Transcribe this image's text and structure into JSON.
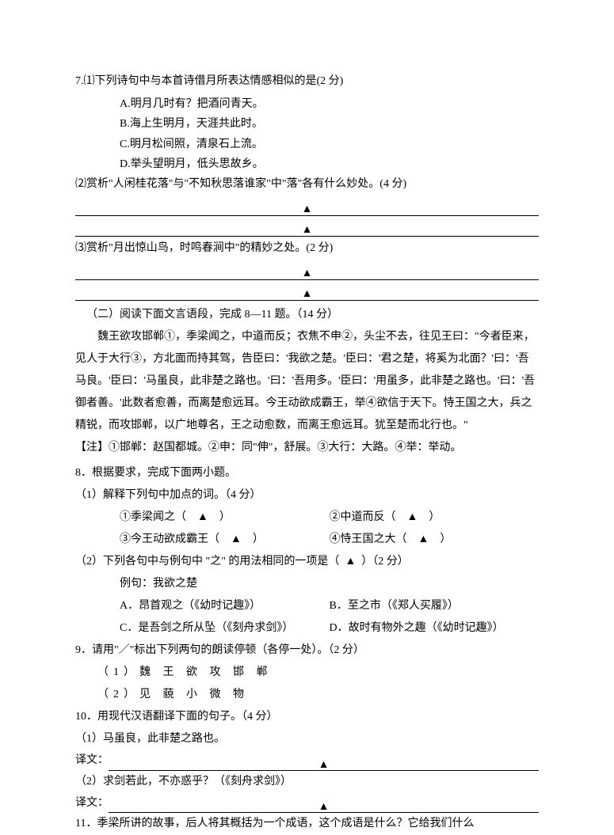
{
  "q7": {
    "stem": "7.⑴下列诗句中与本首诗借月所表达情感相似的是(2 分)",
    "opts": {
      "a": "A.明月几时有？把酒问青天。",
      "b": "B.海上生明月，天涯共此时。",
      "c": "C.明月松间照，清泉石上流。",
      "d": "D.举头望明月，低头思故乡。"
    },
    "p2": "⑵赏析\"人闲桂花落\"与\"不知秋思落谁家\"中\"落\"各有什么妙处。(4 分)",
    "p3": "⑶赏析\"月出惊山鸟，时鸣春涧中\"的精妙之处。(2 分)"
  },
  "section2": {
    "title": "（二）阅读下面文言语段，完成 8—11 题。（14 分）",
    "passage": "魏王欲攻邯郸①，季梁闻之，中道而反；衣焦不申②，头尘不去，往见王曰：\"今者臣来，见人于大行③，方北面而持其驾，告臣曰：'我欲之楚。'臣曰：'君之楚，将奚为北面？'曰：'吾马良。'臣曰：'马虽良，此非楚之路也。'曰：'吾用多。'臣曰：'用虽多，此非楚之路也。'曰：'吾御者善。'此数者愈善，而离楚愈远耳。今王动欲成霸王，举④欲信于天下。恃王国之大，兵之精锐，而攻邯郸，以广地尊名，王之动愈数，而离王愈远耳。犹至楚而北行也。\"",
    "note": "【注】①邯郸：赵国都城。②申：同\"伸\"，舒展。③大行：大路。④举：举动。"
  },
  "q8": {
    "stem": "8．根据要求，完成下面两小题。",
    "p1": "（1）解释下列句中加点的词。（4 分）",
    "b1": "①季梁闻之（",
    "b1b": "）",
    "b2": "②中道而反（",
    "b2b": "）",
    "b3": "③今王动欲成霸王（",
    "b3b": "）",
    "b4": "④恃王国之大（",
    "b4b": "）",
    "p2": "（2）下列各句中与例句中 \"之\" 的用法相同的一项是（",
    "p2b": "）（2 分）",
    "ex": "例句：我欲之楚",
    "oa": "A．昂首观之（《幼时记趣》）",
    "ob": "B．至之市（《郑人买履》）",
    "oc": "C．是吾剑之所从坠（《刻舟求剑》）",
    "od": "D．故时有物外之趣（《幼时记趣》）"
  },
  "q9": {
    "stem": "9．请用\"／\"标出下列两句的朗读停顿（各停一处）。（2 分）",
    "a": "（1）魏 王 欲 攻 邯 郸",
    "b": "（2）见 藐 小 微 物"
  },
  "q10": {
    "stem": "10．用现代汉语翻译下面的句子。（4 分）",
    "a": "（1）马虽良，此非楚之路也。",
    "b": "（2）求剑若此，不亦惑乎？（《刻舟求剑》）",
    "label": "译文："
  },
  "q11": {
    "stem": "11．季梁所讲的故事，后人将其概括为一个成语，这个成语是什么？它给我们什么"
  },
  "tri": "▲"
}
